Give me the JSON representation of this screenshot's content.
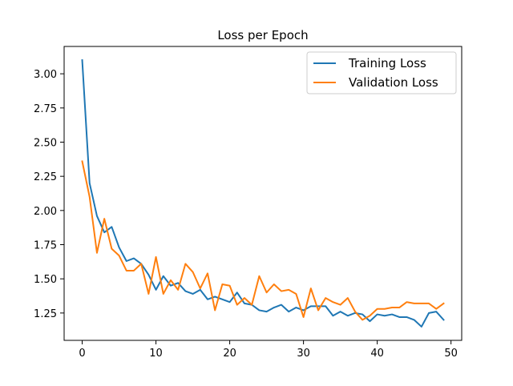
{
  "chart_data": {
    "type": "line",
    "title": "Loss per Epoch",
    "xlabel": "",
    "ylabel": "",
    "xlim": [
      -2.45,
      51.45
    ],
    "ylim": [
      1.05,
      3.2
    ],
    "xticks": [
      0,
      10,
      20,
      30,
      40,
      50
    ],
    "xtick_labels": [
      "0",
      "10",
      "20",
      "30",
      "40",
      "50"
    ],
    "yticks": [
      1.25,
      1.5,
      1.75,
      2.0,
      2.25,
      2.5,
      2.75,
      3.0
    ],
    "ytick_labels": [
      "1.25",
      "1.50",
      "1.75",
      "2.00",
      "2.25",
      "2.50",
      "2.75",
      "3.00"
    ],
    "grid": false,
    "legend_position": "upper-right",
    "x": [
      0,
      1,
      2,
      3,
      4,
      5,
      6,
      7,
      8,
      9,
      10,
      11,
      12,
      13,
      14,
      15,
      16,
      17,
      18,
      19,
      20,
      21,
      22,
      23,
      24,
      25,
      26,
      27,
      28,
      29,
      30,
      31,
      32,
      33,
      34,
      35,
      36,
      37,
      38,
      39,
      40,
      41,
      42,
      43,
      44,
      45,
      46,
      47,
      48,
      49
    ],
    "series": [
      {
        "name": "Training Loss",
        "color": "#1f77b4",
        "values": [
          3.1,
          2.2,
          1.96,
          1.84,
          1.88,
          1.73,
          1.63,
          1.65,
          1.61,
          1.53,
          1.42,
          1.52,
          1.45,
          1.47,
          1.41,
          1.39,
          1.42,
          1.35,
          1.37,
          1.35,
          1.33,
          1.4,
          1.32,
          1.31,
          1.27,
          1.26,
          1.29,
          1.31,
          1.26,
          1.29,
          1.27,
          1.3,
          1.3,
          1.3,
          1.23,
          1.26,
          1.23,
          1.25,
          1.24,
          1.19,
          1.24,
          1.23,
          1.24,
          1.22,
          1.22,
          1.2,
          1.15,
          1.25,
          1.26,
          1.2
        ]
      },
      {
        "name": "Validation Loss",
        "color": "#ff7f0e",
        "values": [
          2.36,
          2.1,
          1.69,
          1.94,
          1.72,
          1.67,
          1.56,
          1.56,
          1.61,
          1.39,
          1.66,
          1.39,
          1.49,
          1.42,
          1.61,
          1.55,
          1.43,
          1.54,
          1.27,
          1.46,
          1.45,
          1.31,
          1.36,
          1.31,
          1.52,
          1.4,
          1.46,
          1.41,
          1.42,
          1.39,
          1.22,
          1.43,
          1.27,
          1.36,
          1.33,
          1.31,
          1.36,
          1.26,
          1.2,
          1.23,
          1.28,
          1.28,
          1.29,
          1.29,
          1.33,
          1.32,
          1.32,
          1.32,
          1.28,
          1.32
        ]
      }
    ]
  }
}
